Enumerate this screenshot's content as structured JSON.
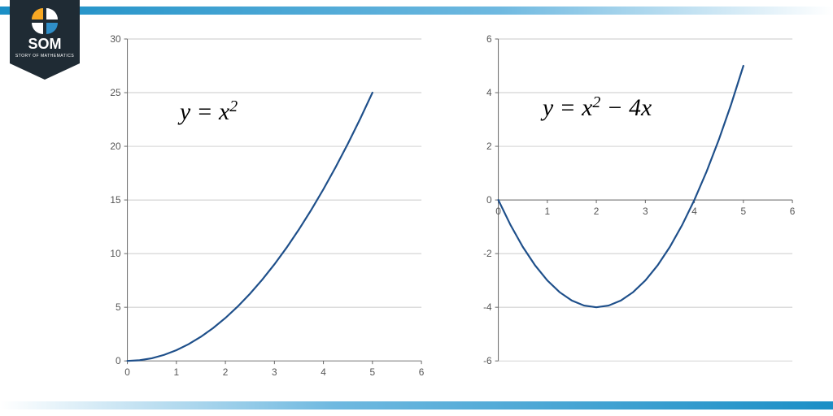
{
  "brand": {
    "name": "SOM",
    "tagline": "STORY OF MATHEMATICS",
    "badge_bg": "#1f2b34",
    "badge_text_color": "#ffffff",
    "icon_colors": {
      "tl": "#f7a823",
      "tr": "#ffffff",
      "bl": "#ffffff",
      "br": "#2f8fc9"
    }
  },
  "bars": {
    "gradient_start": "#1b8fc6",
    "gradient_mid": "#6fb9e0",
    "gradient_end": "#ffffff"
  },
  "charts": {
    "axis_color": "#666666",
    "grid_color": "#b8b8b8",
    "tick_font_size": 12,
    "tick_color": "#555555",
    "line_color": "#1e4f8a",
    "line_width": 2.2,
    "background": "#ffffff",
    "equation_font": "Georgia, 'Times New Roman', serif",
    "equation_color": "#000000",
    "equation_size": 30,
    "left": {
      "equation_html": "y = x<tspan baseline-shift='10' font-size='20'>2</tspan>",
      "equation_plain": "y = x²",
      "xlim": [
        0,
        6
      ],
      "ylim": [
        0,
        30
      ],
      "xticks": [
        0,
        1,
        2,
        3,
        4,
        5,
        6
      ],
      "yticks": [
        0,
        5,
        10,
        15,
        20,
        25,
        30
      ],
      "data": [
        [
          0,
          0
        ],
        [
          0.25,
          0.0625
        ],
        [
          0.5,
          0.25
        ],
        [
          0.75,
          0.5625
        ],
        [
          1,
          1
        ],
        [
          1.25,
          1.5625
        ],
        [
          1.5,
          2.25
        ],
        [
          1.75,
          3.0625
        ],
        [
          2,
          4
        ],
        [
          2.25,
          5.0625
        ],
        [
          2.5,
          6.25
        ],
        [
          2.75,
          7.5625
        ],
        [
          3,
          9
        ],
        [
          3.25,
          10.5625
        ],
        [
          3.5,
          12.25
        ],
        [
          3.75,
          14.0625
        ],
        [
          4,
          16
        ],
        [
          4.25,
          18.0625
        ],
        [
          4.5,
          20.25
        ],
        [
          4.75,
          22.5625
        ],
        [
          5,
          25
        ]
      ]
    },
    "right": {
      "equation_html": "y = x<tspan baseline-shift='10' font-size='20'>2</tspan> − 4x",
      "equation_plain": "y = x² − 4x",
      "xlim": [
        0,
        6
      ],
      "ylim": [
        -6,
        6
      ],
      "xticks": [
        0,
        1,
        2,
        3,
        4,
        5,
        6
      ],
      "yticks": [
        -6,
        -4,
        -2,
        0,
        2,
        4,
        6
      ],
      "data": [
        [
          0,
          0
        ],
        [
          0.25,
          -0.9375
        ],
        [
          0.5,
          -1.75
        ],
        [
          0.75,
          -2.4375
        ],
        [
          1,
          -3
        ],
        [
          1.25,
          -3.4375
        ],
        [
          1.5,
          -3.75
        ],
        [
          1.75,
          -3.9375
        ],
        [
          2,
          -4
        ],
        [
          2.25,
          -3.9375
        ],
        [
          2.5,
          -3.75
        ],
        [
          2.75,
          -3.4375
        ],
        [
          3,
          -3
        ],
        [
          3.25,
          -2.4375
        ],
        [
          3.5,
          -1.75
        ],
        [
          3.75,
          -0.9375
        ],
        [
          4,
          0
        ],
        [
          4.25,
          1.0625
        ],
        [
          4.5,
          2.25
        ],
        [
          4.75,
          3.5625
        ],
        [
          5,
          5
        ]
      ]
    }
  }
}
